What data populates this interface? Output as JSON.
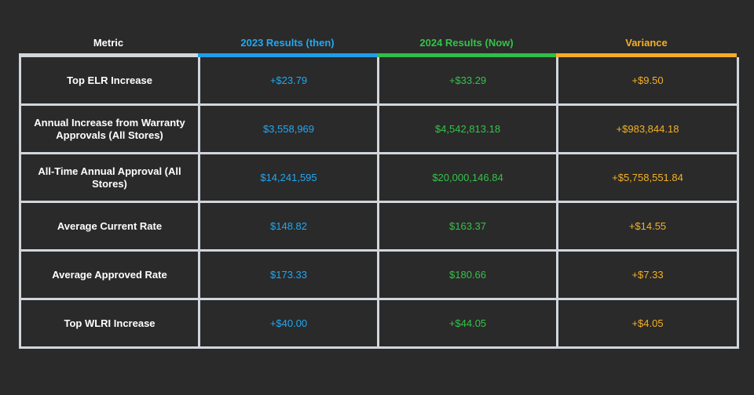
{
  "headers": {
    "metric": "Metric",
    "results_2023": "2023 Results (then)",
    "results_2024": "2024 Results (Now)",
    "variance": "Variance"
  },
  "colors": {
    "results_2023": "#22a8f0",
    "results_2024": "#35c24a",
    "variance": "#f5b025",
    "background": "#2a2a2a",
    "border": "#d0d6dc"
  },
  "rows": [
    {
      "metric": "Top ELR Increase",
      "results_2023": "+$23.79",
      "results_2024": "+$33.29",
      "variance": "+$9.50"
    },
    {
      "metric": "Annual Increase from Warranty Approvals (All Stores)",
      "results_2023": "$3,558,969",
      "results_2024": "$4,542,813.18",
      "variance": "+$983,844.18"
    },
    {
      "metric": "All-Time Annual Approval (All Stores)",
      "results_2023": "$14,241,595",
      "results_2024": "$20,000,146.84",
      "variance": "+$5,758,551.84"
    },
    {
      "metric": "Average Current Rate",
      "results_2023": "$148.82",
      "results_2024": "$163.37",
      "variance": "+$14.55"
    },
    {
      "metric": "Average Approved Rate",
      "results_2023": "$173.33",
      "results_2024": "$180.66",
      "variance": "+$7.33"
    },
    {
      "metric": "Top WLRI Increase",
      "results_2023": "+$40.00",
      "results_2024": "+$44.05",
      "variance": "+$4.05"
    }
  ]
}
